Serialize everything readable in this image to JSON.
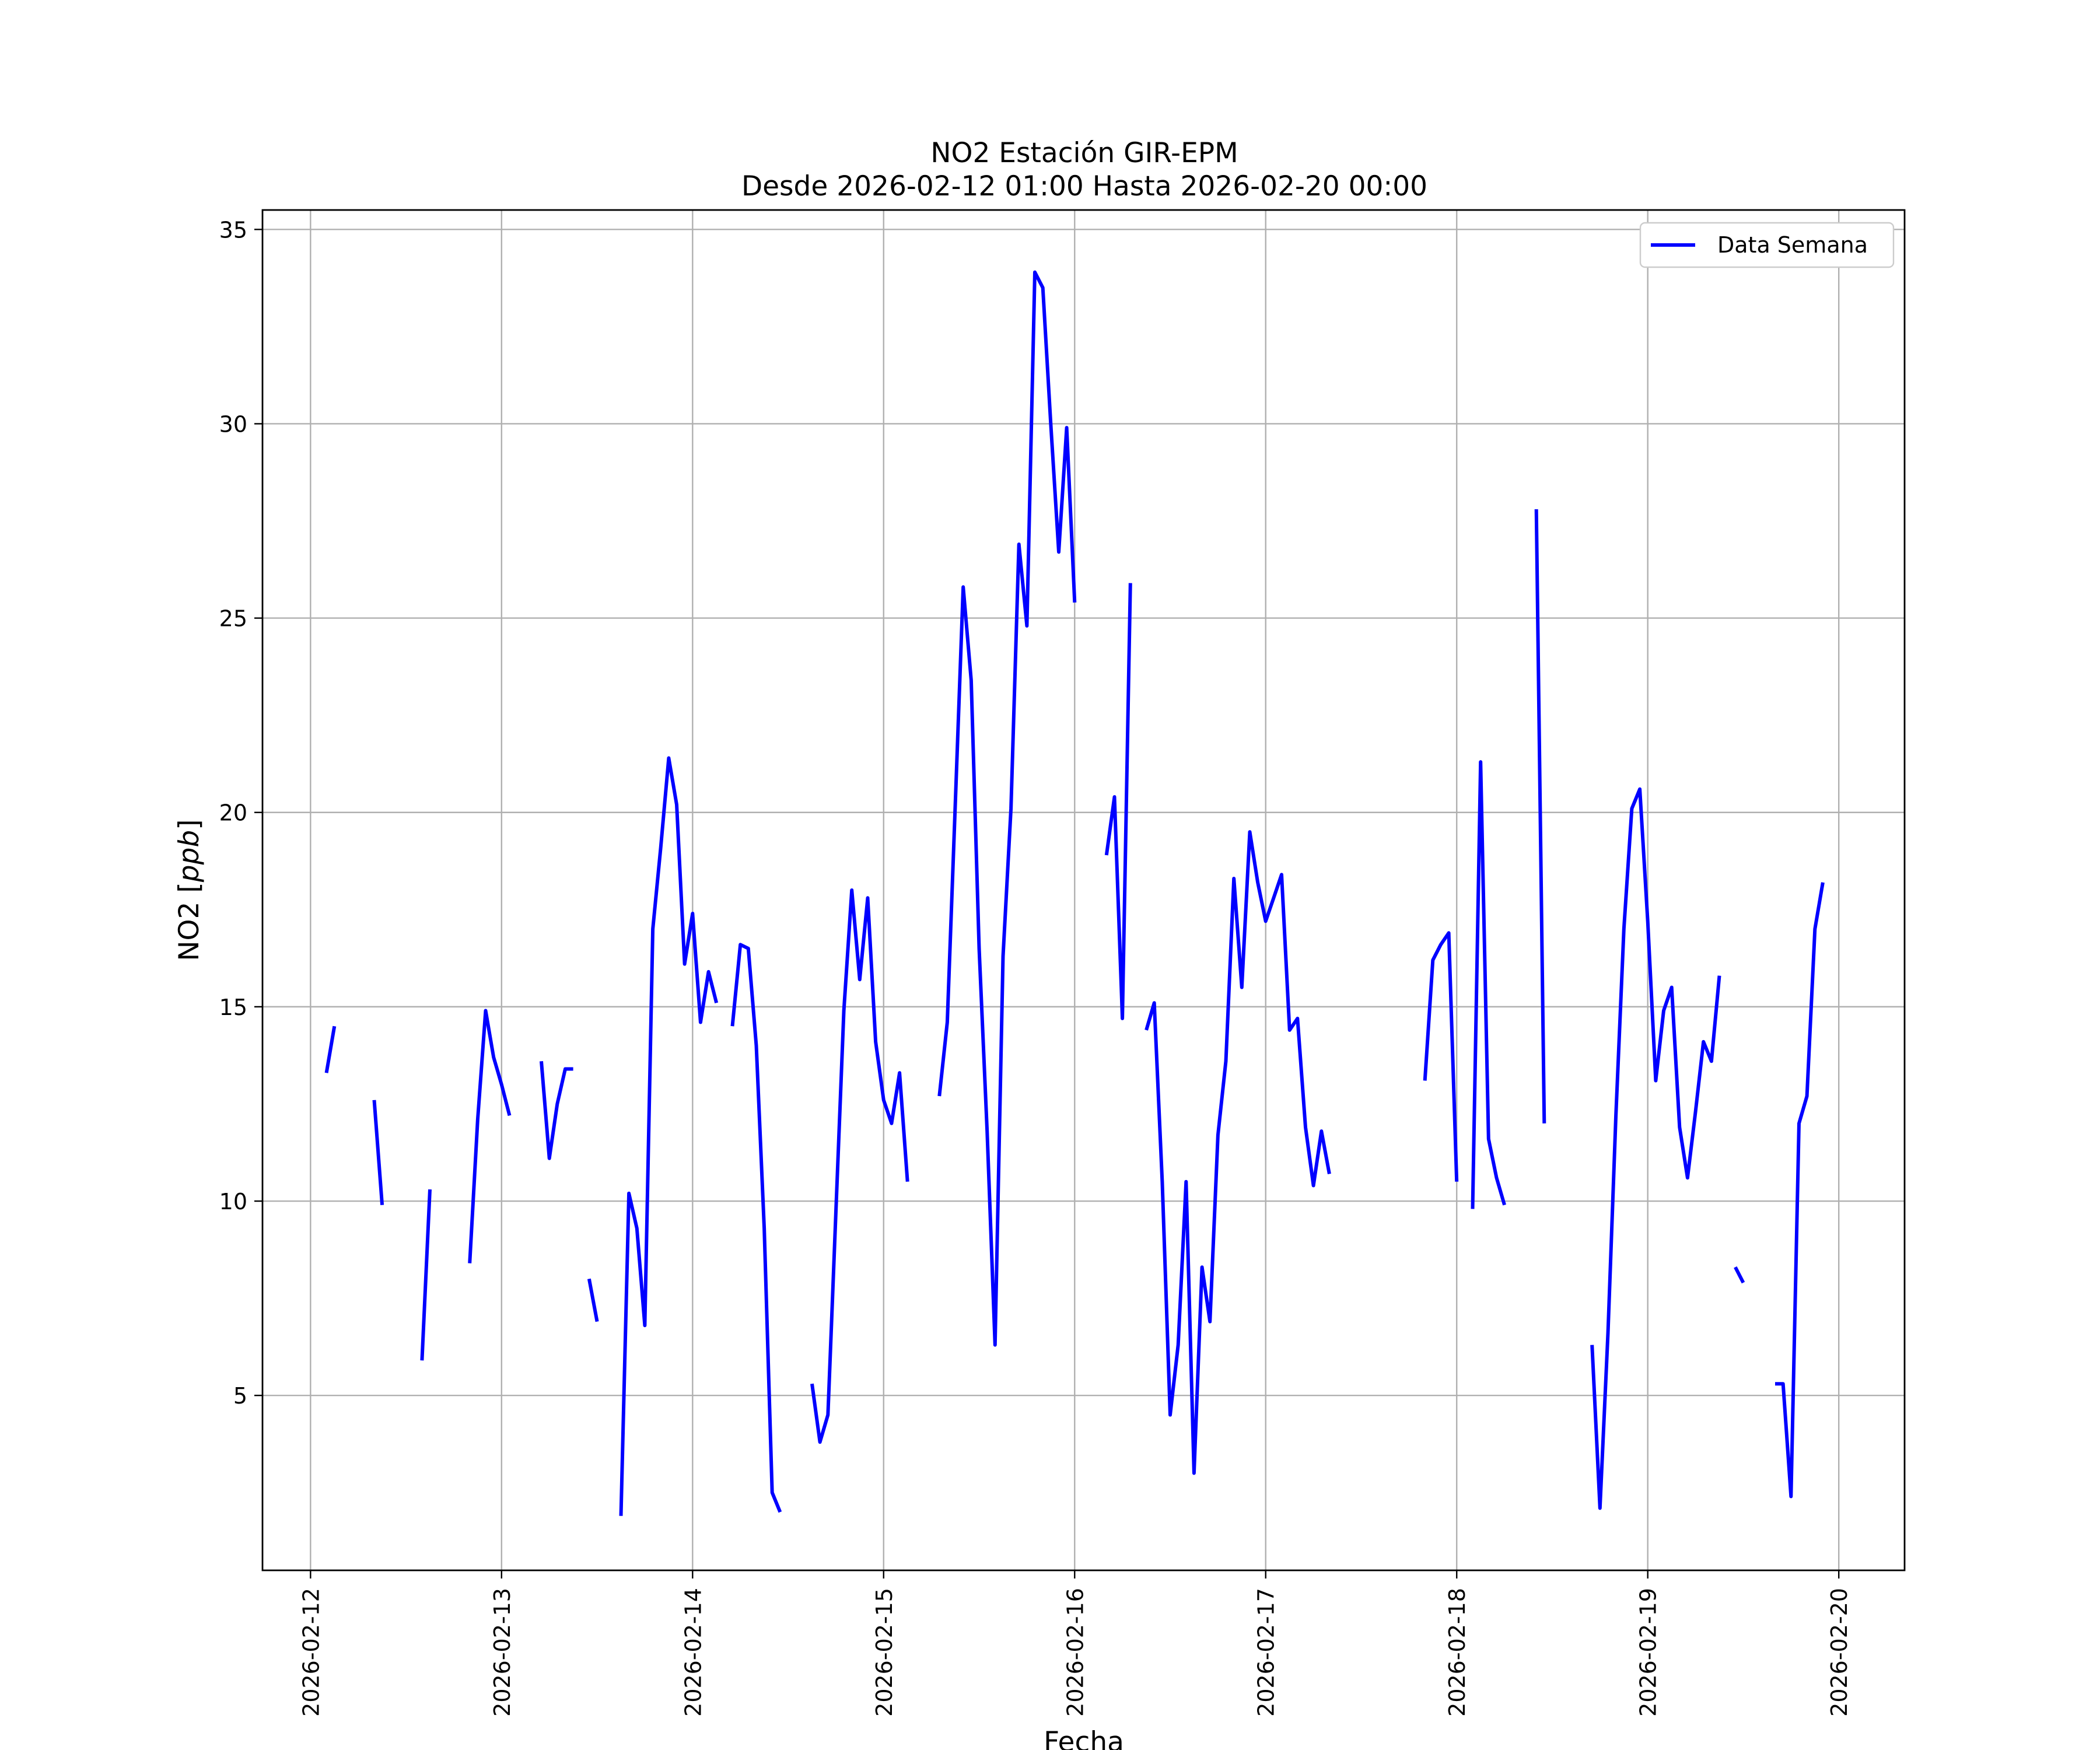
{
  "chart_data": {
    "type": "line",
    "title": "NO2 Estación GIR-EPM",
    "subtitle": "Desde 2026-02-12 01:00 Hasta 2026-02-20 00:00",
    "xlabel": "Fecha",
    "ylabel": "NO2 [ppb]",
    "x_tick_labels": [
      "2026-02-12",
      "2026-02-13",
      "2026-02-14",
      "2026-02-15",
      "2026-02-16",
      "2026-02-17",
      "2026-02-18",
      "2026-02-19",
      "2026-02-20"
    ],
    "y_ticks": [
      5,
      10,
      15,
      20,
      25,
      30,
      35
    ],
    "xlim": [
      "2026-02-11 17:58",
      "2026-02-20 08:16"
    ],
    "ylim": [
      0.5,
      35.5
    ],
    "grid": true,
    "legend_position": "top-right",
    "series": [
      {
        "name": "Data Semana",
        "color": "#0000ff",
        "segments": [
          [
            [
              "2026-02-12 02:00",
              13.3
            ],
            [
              "2026-02-12 03:00",
              14.5
            ]
          ],
          [
            [
              "2026-02-12 08:00",
              12.6
            ],
            [
              "2026-02-12 09:00",
              9.9
            ]
          ],
          [
            [
              "2026-02-12 14:00",
              5.9
            ],
            [
              "2026-02-12 15:00",
              10.3
            ]
          ],
          [
            [
              "2026-02-12 20:00",
              8.4
            ],
            [
              "2026-02-12 21:00",
              12.1
            ],
            [
              "2026-02-12 22:00",
              14.9
            ],
            [
              "2026-02-12 23:00",
              13.7
            ],
            [
              "2026-02-13 00:00",
              13.0
            ],
            [
              "2026-02-13 01:00",
              12.2
            ]
          ],
          [
            [
              "2026-02-13 05:00",
              13.6
            ],
            [
              "2026-02-13 06:00",
              11.1
            ],
            [
              "2026-02-13 07:00",
              12.5
            ],
            [
              "2026-02-13 08:00",
              13.4
            ],
            [
              "2026-02-13 09:00",
              13.4
            ]
          ],
          [
            [
              "2026-02-13 11:00",
              8.0
            ],
            [
              "2026-02-13 12:00",
              6.9
            ]
          ],
          [
            [
              "2026-02-13 15:00",
              1.9
            ],
            [
              "2026-02-13 16:00",
              10.2
            ],
            [
              "2026-02-13 17:00",
              9.3
            ],
            [
              "2026-02-13 18:00",
              6.8
            ],
            [
              "2026-02-13 19:00",
              17.0
            ],
            [
              "2026-02-13 20:00",
              19.1
            ],
            [
              "2026-02-13 21:00",
              21.4
            ],
            [
              "2026-02-13 22:00",
              20.2
            ],
            [
              "2026-02-13 23:00",
              16.1
            ],
            [
              "2026-02-14 00:00",
              17.4
            ],
            [
              "2026-02-14 01:00",
              14.6
            ],
            [
              "2026-02-14 02:00",
              15.9
            ],
            [
              "2026-02-14 03:00",
              15.1
            ]
          ],
          [
            [
              "2026-02-14 05:00",
              14.5
            ],
            [
              "2026-02-14 06:00",
              16.6
            ],
            [
              "2026-02-14 07:00",
              16.5
            ],
            [
              "2026-02-14 08:00",
              14.0
            ],
            [
              "2026-02-14 09:00",
              9.3
            ],
            [
              "2026-02-14 10:00",
              2.5
            ],
            [
              "2026-02-14 11:00",
              2.0
            ]
          ],
          [
            [
              "2026-02-14 15:00",
              5.3
            ],
            [
              "2026-02-14 16:00",
              3.8
            ],
            [
              "2026-02-14 17:00",
              4.5
            ],
            [
              "2026-02-14 18:00",
              9.7
            ],
            [
              "2026-02-14 19:00",
              14.9
            ],
            [
              "2026-02-14 20:00",
              18.0
            ],
            [
              "2026-02-14 21:00",
              15.7
            ],
            [
              "2026-02-14 22:00",
              17.8
            ],
            [
              "2026-02-14 23:00",
              14.1
            ],
            [
              "2026-02-15 00:00",
              12.6
            ],
            [
              "2026-02-15 01:00",
              12.0
            ],
            [
              "2026-02-15 02:00",
              13.3
            ],
            [
              "2026-02-15 03:00",
              10.5
            ]
          ],
          [
            [
              "2026-02-15 07:00",
              12.7
            ],
            [
              "2026-02-15 08:00",
              14.6
            ],
            [
              "2026-02-15 09:00",
              20.2
            ],
            [
              "2026-02-15 10:00",
              25.8
            ],
            [
              "2026-02-15 11:00",
              23.4
            ],
            [
              "2026-02-15 12:00",
              16.5
            ],
            [
              "2026-02-15 13:00",
              11.8
            ],
            [
              "2026-02-15 14:00",
              6.3
            ],
            [
              "2026-02-15 15:00",
              16.3
            ],
            [
              "2026-02-15 16:00",
              20.1
            ],
            [
              "2026-02-15 17:00",
              26.9
            ],
            [
              "2026-02-15 18:00",
              24.8
            ],
            [
              "2026-02-15 19:00",
              33.9
            ],
            [
              "2026-02-15 20:00",
              33.5
            ],
            [
              "2026-02-15 21:00",
              30.0
            ],
            [
              "2026-02-15 22:00",
              26.7
            ],
            [
              "2026-02-15 23:00",
              29.9
            ],
            [
              "2026-02-16 00:00",
              25.4
            ]
          ],
          [
            [
              "2026-02-16 04:00",
              18.9
            ],
            [
              "2026-02-16 05:00",
              20.4
            ],
            [
              "2026-02-16 06:00",
              14.7
            ],
            [
              "2026-02-16 07:00",
              25.9
            ]
          ],
          [
            [
              "2026-02-16 09:00",
              14.4
            ],
            [
              "2026-02-16 10:00",
              15.1
            ],
            [
              "2026-02-16 11:00",
              10.5
            ],
            [
              "2026-02-16 12:00",
              4.5
            ],
            [
              "2026-02-16 13:00",
              6.3
            ],
            [
              "2026-02-16 14:00",
              10.5
            ],
            [
              "2026-02-16 15:00",
              3.0
            ],
            [
              "2026-02-16 16:00",
              8.3
            ],
            [
              "2026-02-16 17:00",
              6.9
            ],
            [
              "2026-02-16 18:00",
              11.7
            ],
            [
              "2026-02-16 19:00",
              13.6
            ],
            [
              "2026-02-16 20:00",
              18.3
            ],
            [
              "2026-02-16 21:00",
              15.5
            ],
            [
              "2026-02-16 22:00",
              19.5
            ],
            [
              "2026-02-16 23:00",
              18.2
            ],
            [
              "2026-02-17 00:00",
              17.2
            ],
            [
              "2026-02-17 01:00",
              17.8
            ],
            [
              "2026-02-17 02:00",
              18.4
            ],
            [
              "2026-02-17 03:00",
              14.4
            ],
            [
              "2026-02-17 04:00",
              14.7
            ],
            [
              "2026-02-17 05:00",
              11.9
            ],
            [
              "2026-02-17 06:00",
              10.4
            ],
            [
              "2026-02-17 07:00",
              11.8
            ],
            [
              "2026-02-17 08:00",
              10.7
            ]
          ],
          [
            [
              "2026-02-17 20:00",
              13.1
            ],
            [
              "2026-02-17 21:00",
              16.2
            ],
            [
              "2026-02-17 22:00",
              16.6
            ],
            [
              "2026-02-17 23:00",
              16.9
            ],
            [
              "2026-02-18 00:00",
              10.5
            ]
          ],
          [
            [
              "2026-02-18 02:00",
              9.8
            ],
            [
              "2026-02-18 03:00",
              21.3
            ],
            [
              "2026-02-18 04:00",
              11.6
            ],
            [
              "2026-02-18 05:00",
              10.6
            ],
            [
              "2026-02-18 06:00",
              9.9
            ]
          ],
          [
            [
              "2026-02-18 10:00",
              27.8
            ],
            [
              "2026-02-18 11:00",
              12.0
            ]
          ],
          [
            [
              "2026-02-18 17:00",
              6.3
            ],
            [
              "2026-02-18 18:00",
              2.1
            ],
            [
              "2026-02-18 19:00",
              6.6
            ],
            [
              "2026-02-18 20:00",
              12.2
            ],
            [
              "2026-02-18 21:00",
              17.0
            ],
            [
              "2026-02-18 22:00",
              20.1
            ],
            [
              "2026-02-18 23:00",
              20.6
            ],
            [
              "2026-02-19 00:00",
              17.2
            ],
            [
              "2026-02-19 01:00",
              13.1
            ],
            [
              "2026-02-19 02:00",
              14.9
            ],
            [
              "2026-02-19 03:00",
              15.5
            ],
            [
              "2026-02-19 04:00",
              11.9
            ],
            [
              "2026-02-19 05:00",
              10.6
            ],
            [
              "2026-02-19 06:00",
              12.3
            ],
            [
              "2026-02-19 07:00",
              14.1
            ],
            [
              "2026-02-19 08:00",
              13.6
            ],
            [
              "2026-02-19 09:00",
              15.8
            ]
          ],
          [
            [
              "2026-02-19 11:00",
              8.3
            ],
            [
              "2026-02-19 12:00",
              7.9
            ]
          ],
          [
            [
              "2026-02-19 16:00",
              5.3
            ],
            [
              "2026-02-19 17:00",
              5.3
            ],
            [
              "2026-02-19 18:00",
              2.4
            ],
            [
              "2026-02-19 19:00",
              12.0
            ],
            [
              "2026-02-19 20:00",
              12.7
            ],
            [
              "2026-02-19 21:00",
              17.0
            ],
            [
              "2026-02-19 22:00",
              18.2
            ]
          ]
        ]
      }
    ]
  }
}
